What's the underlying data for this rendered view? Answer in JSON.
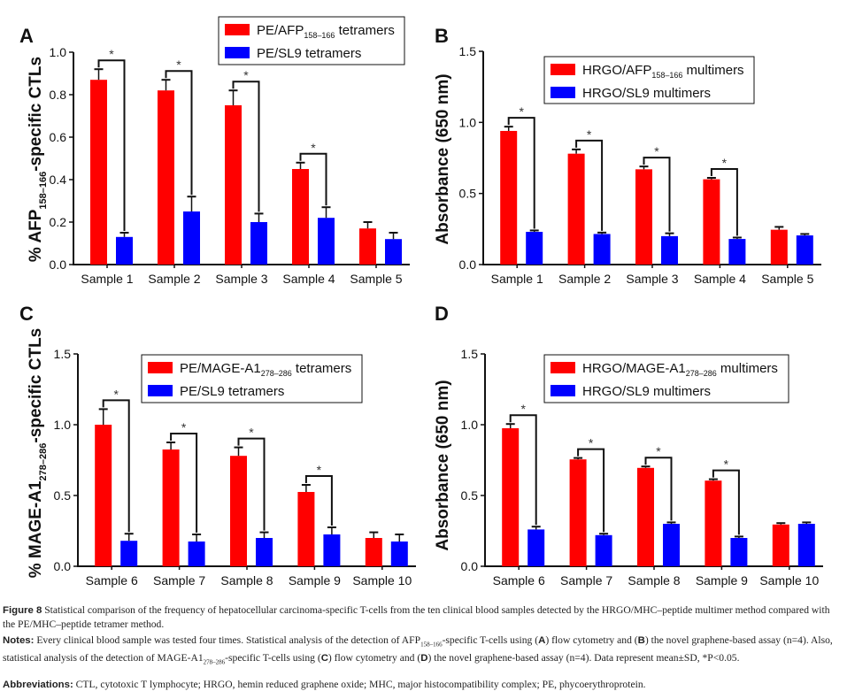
{
  "chart_data": [
    {
      "type": "bar",
      "panel": "A",
      "title": "",
      "xlabel": "",
      "ylabel": "% AFP158–166-specific CTLs",
      "ylabel_parts": {
        "pre": "% AFP",
        "sub": "158–166",
        "post": "-specific CTLs"
      },
      "ylim": [
        0,
        1.0
      ],
      "yticks": [
        "0.0",
        "0.2",
        "0.4",
        "0.6",
        "0.8",
        "1.0"
      ],
      "ytick_values": [
        0,
        0.2,
        0.4,
        0.6,
        0.8,
        1.0
      ],
      "categories": [
        "Sample 1",
        "Sample 2",
        "Sample 3",
        "Sample 4",
        "Sample 5"
      ],
      "series": [
        {
          "name": "PE/AFP158–166 tetramers",
          "legend_pre": "PE/AFP",
          "legend_sub": "158–166",
          "legend_post": " tetramers",
          "color": "#ff0000",
          "values": [
            0.87,
            0.82,
            0.75,
            0.45,
            0.17
          ],
          "errors": [
            0.05,
            0.05,
            0.07,
            0.03,
            0.03
          ]
        },
        {
          "name": "PE/SL9 tetramers",
          "legend_pre": "PE/SL9 tetramers",
          "legend_sub": "",
          "legend_post": "",
          "color": "#0000ff",
          "values": [
            0.13,
            0.25,
            0.2,
            0.22,
            0.12
          ],
          "errors": [
            0.02,
            0.07,
            0.04,
            0.05,
            0.03
          ]
        }
      ],
      "significance": [
        true,
        true,
        true,
        true,
        false
      ],
      "significance_mark": "*",
      "legend_position": "top-right"
    },
    {
      "type": "bar",
      "panel": "B",
      "title": "",
      "xlabel": "",
      "ylabel": "Absorbance (650 nm)",
      "ylabel_parts": {
        "pre": "Absorbance (650 nm)",
        "sub": "",
        "post": ""
      },
      "ylim": [
        0,
        1.5
      ],
      "yticks": [
        "0.0",
        "0.5",
        "1.0",
        "1.5"
      ],
      "ytick_values": [
        0,
        0.5,
        1.0,
        1.5
      ],
      "categories": [
        "Sample 1",
        "Sample 2",
        "Sample 3",
        "Sample 4",
        "Sample 5"
      ],
      "series": [
        {
          "name": "HRGO/AFP158–166 multimers",
          "legend_pre": "HRGO/AFP",
          "legend_sub": "158–166",
          "legend_post": " multimers",
          "color": "#ff0000",
          "values": [
            0.94,
            0.78,
            0.67,
            0.6,
            0.245
          ],
          "errors": [
            0.03,
            0.03,
            0.02,
            0.01,
            0.02
          ]
        },
        {
          "name": "HRGO/SL9 multimers",
          "legend_pre": "HRGO/SL9 multimers",
          "legend_sub": "",
          "legend_post": "",
          "color": "#0000ff",
          "values": [
            0.23,
            0.215,
            0.2,
            0.18,
            0.205
          ],
          "errors": [
            0.01,
            0.01,
            0.02,
            0.01,
            0.01
          ]
        }
      ],
      "significance": [
        true,
        true,
        true,
        true,
        false
      ],
      "significance_mark": "*",
      "legend_position": "top-center"
    },
    {
      "type": "bar",
      "panel": "C",
      "title": "",
      "xlabel": "",
      "ylabel": "% MAGE-A1278–286-specific CTLs",
      "ylabel_parts": {
        "pre": "% MAGE-A1",
        "sub": "278–286",
        "post": "-specific CTLs"
      },
      "ylim": [
        0,
        1.5
      ],
      "yticks": [
        "0.0",
        "0.5",
        "1.0",
        "1.5"
      ],
      "ytick_values": [
        0,
        0.5,
        1.0,
        1.5
      ],
      "categories": [
        "Sample 6",
        "Sample 7",
        "Sample 8",
        "Sample 9",
        "Sample 10"
      ],
      "series": [
        {
          "name": "PE/MAGE-A1278–286 tetramers",
          "legend_pre": "PE/MAGE-A1",
          "legend_sub": "278–286",
          "legend_post": " tetramers",
          "color": "#ff0000",
          "values": [
            1.0,
            0.825,
            0.78,
            0.525,
            0.2
          ],
          "errors": [
            0.11,
            0.05,
            0.06,
            0.05,
            0.04
          ]
        },
        {
          "name": "PE/SL9 tetramers",
          "legend_pre": "PE/SL9 tetramers",
          "legend_sub": "",
          "legend_post": "",
          "color": "#0000ff",
          "values": [
            0.18,
            0.175,
            0.2,
            0.225,
            0.175
          ],
          "errors": [
            0.05,
            0.05,
            0.04,
            0.05,
            0.05
          ]
        }
      ],
      "significance": [
        true,
        true,
        true,
        true,
        false
      ],
      "significance_mark": "*",
      "legend_position": "top-right"
    },
    {
      "type": "bar",
      "panel": "D",
      "title": "",
      "xlabel": "",
      "ylabel": "Absorbance (650 nm)",
      "ylabel_parts": {
        "pre": "Absorbance (650 nm)",
        "sub": "",
        "post": ""
      },
      "ylim": [
        0,
        1.5
      ],
      "yticks": [
        "0.0",
        "0.5",
        "1.0",
        "1.5"
      ],
      "ytick_values": [
        0,
        0.5,
        1.0,
        1.5
      ],
      "categories": [
        "Sample 6",
        "Sample 7",
        "Sample 8",
        "Sample 9",
        "Sample 10"
      ],
      "series": [
        {
          "name": "HRGO/MAGE-A1278–286 multimers",
          "legend_pre": "HRGO/MAGE-A1",
          "legend_sub": "278–286",
          "legend_post": " multimers",
          "color": "#ff0000",
          "values": [
            0.975,
            0.755,
            0.695,
            0.605,
            0.295
          ],
          "errors": [
            0.03,
            0.01,
            0.01,
            0.01,
            0.01
          ]
        },
        {
          "name": "HRGO/SL9 multimers",
          "legend_pre": "HRGO/SL9 multimers",
          "legend_sub": "",
          "legend_post": "",
          "color": "#0000ff",
          "values": [
            0.26,
            0.22,
            0.3,
            0.2,
            0.3
          ],
          "errors": [
            0.02,
            0.01,
            0.01,
            0.01,
            0.01
          ]
        }
      ],
      "significance": [
        true,
        true,
        true,
        true,
        false
      ],
      "significance_mark": "*",
      "legend_position": "top-center"
    }
  ],
  "caption": {
    "figure_label": "Figure 8",
    "figure_text": " Statistical comparison of the frequency of hepatocellular carcinoma-specific T-cells from the ten clinical blood samples detected by the HRGO/MHC–peptide multimer method compared with the PE/MHC–peptide tetramer method.",
    "notes_label": "Notes:",
    "notes_1": " Every clinical blood sample was tested four times. Statistical analysis of the detection of AFP",
    "notes_sub_1": "158–166",
    "notes_2": "-specific T-cells using (",
    "notes_A": "A",
    "notes_3": ") flow cytometry and (",
    "notes_B": "B",
    "notes_4": ") the novel graphene-based assay (n=4). Also, statistical analysis of the detection of MAGE-A1",
    "notes_sub_2": "278–286",
    "notes_5": "-specific T-cells using (",
    "notes_C": "C",
    "notes_6": ") flow cytometry and (",
    "notes_D": "D",
    "notes_7": ") the novel graphene-based assay (n=4). Data represent mean±SD, *P<0.05.",
    "abbrev_label": "Abbreviations:",
    "abbrev_text": " CTL, cytotoxic T lymphocyte; HRGO, hemin reduced graphene oxide; MHC, major histocompatibility complex; PE, phycoerythroprotein."
  }
}
